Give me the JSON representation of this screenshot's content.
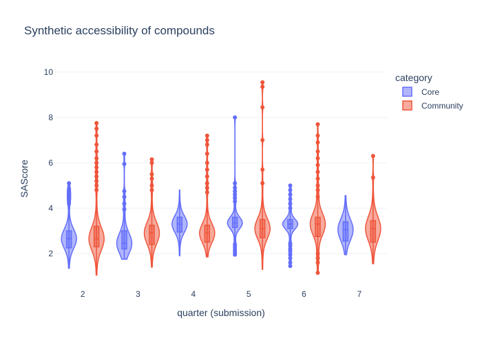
{
  "chart_data": {
    "type": "violin",
    "title": "Synthetic accessibility of compounds",
    "xlabel": "quarter (submission)",
    "ylabel": "SAScore",
    "ylim": [
      1,
      10.3
    ],
    "yticks": [
      2,
      4,
      6,
      8,
      10
    ],
    "categories": [
      "2",
      "3",
      "4",
      "5",
      "6",
      "7"
    ],
    "grid": true,
    "legend": {
      "title": "category",
      "placement": "top-right"
    },
    "series": [
      {
        "name": "Core",
        "color": "#636efa",
        "fill": "rgba(99,110,250,0.5)",
        "groups": [
          {
            "x": "2",
            "min": 1.35,
            "q1": 2.25,
            "median": 2.65,
            "q3": 3.0,
            "max": 5.1,
            "outliers": [
              4.2,
              4.3,
              4.4,
              4.5,
              4.6,
              4.7,
              4.8,
              4.85,
              5.1
            ]
          },
          {
            "x": "3",
            "min": 1.75,
            "q1": 2.2,
            "median": 2.45,
            "q3": 3.0,
            "max": 6.4,
            "outliers": [
              3.95,
              4.2,
              4.5,
              4.75,
              5.95,
              6.4
            ]
          },
          {
            "x": "4",
            "min": 1.9,
            "q1": 2.95,
            "median": 3.3,
            "q3": 3.6,
            "max": 4.8,
            "outliers": []
          },
          {
            "x": "5",
            "min": 1.95,
            "q1": 3.15,
            "median": 3.35,
            "q3": 3.6,
            "max": 8.0,
            "outliers": [
              1.95,
              2.05,
              2.15,
              2.3,
              2.4,
              4.3,
              4.45,
              4.6,
              4.75,
              4.9,
              5.1,
              8.0
            ]
          },
          {
            "x": "6",
            "min": 1.45,
            "q1": 3.1,
            "median": 3.3,
            "q3": 3.5,
            "max": 5.0,
            "outliers": [
              1.45,
              1.6,
              1.8,
              1.95,
              2.1,
              2.2,
              2.35,
              2.45,
              4.0,
              4.2,
              4.4,
              4.6,
              4.8,
              5.0
            ]
          },
          {
            "x": "7",
            "min": 1.95,
            "q1": 2.55,
            "median": 3.05,
            "q3": 3.4,
            "max": 4.55,
            "outliers": []
          }
        ]
      },
      {
        "name": "Community",
        "color": "#ef553b",
        "fill": "rgba(239,85,59,0.5)",
        "groups": [
          {
            "x": "2",
            "min": 1.05,
            "q1": 2.3,
            "median": 2.65,
            "q3": 3.2,
            "max": 7.75,
            "outliers": [
              4.8,
              5.0,
              5.2,
              5.4,
              5.6,
              5.8,
              6.0,
              6.2,
              6.5,
              6.8,
              7.2,
              7.5,
              7.75
            ]
          },
          {
            "x": "3",
            "min": 1.4,
            "q1": 2.4,
            "median": 2.9,
            "q3": 3.25,
            "max": 6.15,
            "outliers": [
              4.8,
              5.0,
              5.3,
              5.5,
              6.0,
              6.15
            ]
          },
          {
            "x": "4",
            "min": 1.85,
            "q1": 2.5,
            "median": 2.9,
            "q3": 3.25,
            "max": 7.2,
            "outliers": [
              4.7,
              4.9,
              5.1,
              5.4,
              5.7,
              6.0,
              6.4,
              6.8,
              7.0,
              7.2
            ]
          },
          {
            "x": "5",
            "min": 1.3,
            "q1": 2.7,
            "median": 3.1,
            "q3": 3.5,
            "max": 9.55,
            "outliers": [
              5.1,
              5.7,
              7.0,
              8.45,
              9.35,
              9.55
            ]
          },
          {
            "x": "6",
            "min": 1.15,
            "q1": 2.75,
            "median": 3.3,
            "q3": 3.6,
            "max": 7.7,
            "outliers": [
              1.15,
              1.6,
              1.8,
              2.0,
              4.5,
              4.8,
              5.0,
              5.3,
              5.6,
              5.9,
              6.2,
              6.5,
              6.9,
              7.2,
              7.7
            ]
          },
          {
            "x": "7",
            "min": 1.55,
            "q1": 2.5,
            "median": 3.1,
            "q3": 3.45,
            "max": 6.3,
            "outliers": [
              5.35,
              6.3
            ]
          }
        ]
      }
    ]
  }
}
